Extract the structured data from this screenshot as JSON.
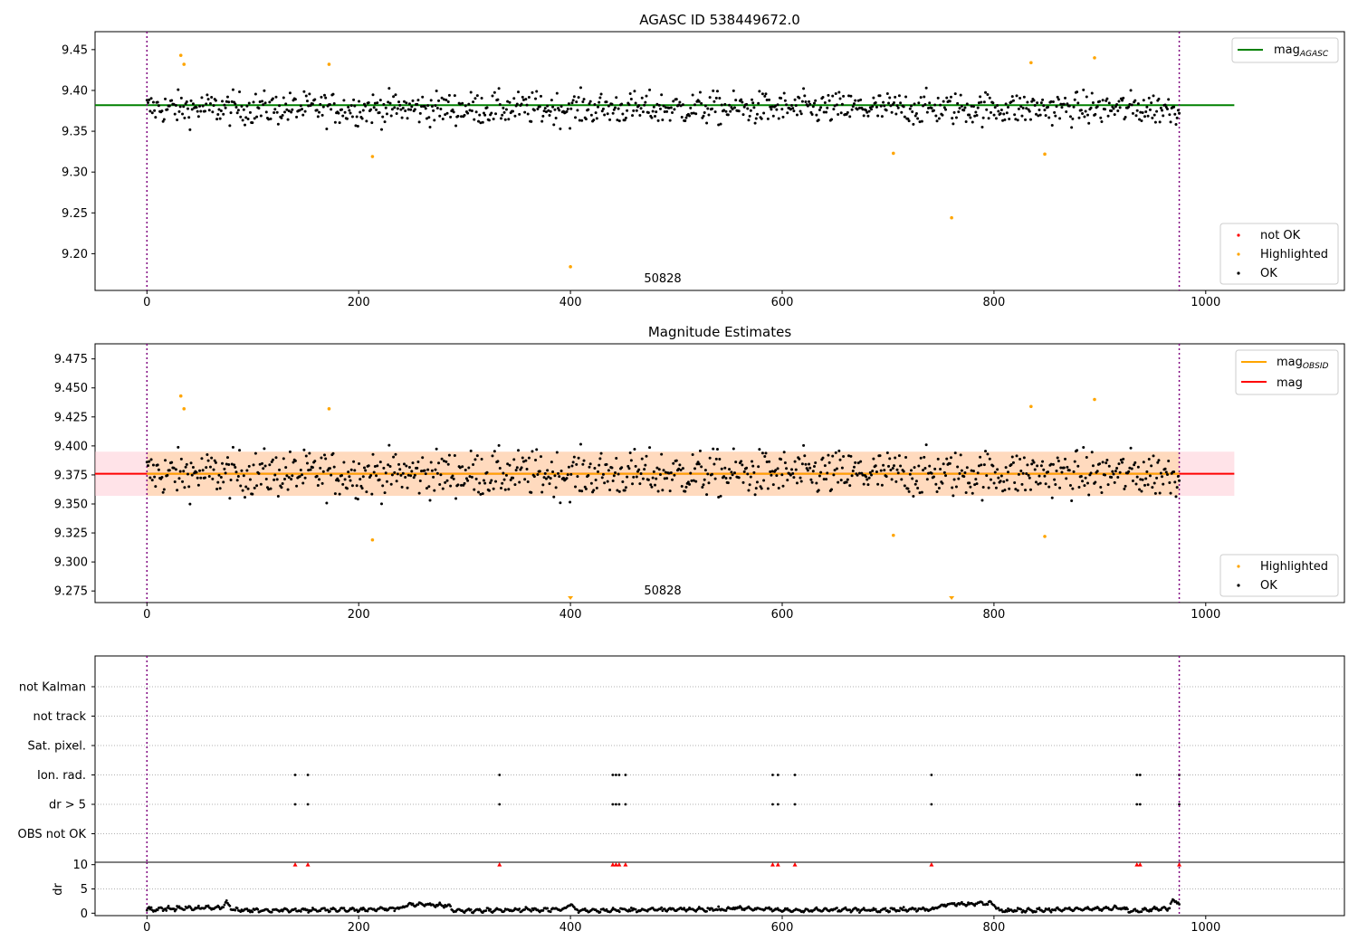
{
  "figure": {
    "panel1_title": "AGASC ID 538449672.0",
    "panel2_title": "Magnitude Estimates",
    "obsid_label": "50828"
  },
  "legends": {
    "agasc_line": {
      "label": "mag",
      "sub": "AGASC",
      "color": "#008000"
    },
    "obsid_line": {
      "label": "mag",
      "sub": "OBSID",
      "color": "#ffa500"
    },
    "mag_line": {
      "label": "mag",
      "color": "#ff0000"
    },
    "not_ok": {
      "label": "not OK",
      "color": "#ff0000"
    },
    "highlighted": {
      "label": "Highlighted",
      "color": "#ffa500"
    },
    "ok": {
      "label": "OK",
      "color": "#000000"
    }
  },
  "chart_data": [
    {
      "type": "scatter",
      "title": "AGASC ID 538449672.0",
      "xlim": [
        -49,
        1131
      ],
      "ylim": [
        9.155,
        9.472
      ],
      "xticks": [
        0,
        200,
        400,
        600,
        800,
        1000
      ],
      "yticks": [
        9.2,
        9.25,
        9.3,
        9.35,
        9.4,
        9.45
      ],
      "hlines": [
        {
          "name": "mag_AGASC",
          "y": 9.382,
          "x": [
            -49,
            1027
          ],
          "color": "#008000"
        }
      ],
      "vlines": [
        0,
        975
      ],
      "annotation": {
        "text": "50828",
        "x": 488
      },
      "series": [
        {
          "name": "not OK",
          "color": "#ff0000",
          "points": []
        },
        {
          "name": "Highlighted",
          "color": "#ffa500",
          "points": [
            [
              32,
              9.443
            ],
            [
              35,
              9.432
            ],
            [
              172,
              9.432
            ],
            [
              213,
              9.319
            ],
            [
              400,
              9.184
            ],
            [
              705,
              9.323
            ],
            [
              760,
              9.244
            ],
            [
              835,
              9.434
            ],
            [
              848,
              9.322
            ],
            [
              895,
              9.44
            ]
          ]
        },
        {
          "name": "OK",
          "color": "#000000",
          "ok_count": 960,
          "center": 9.378,
          "spread": 0.018
        }
      ],
      "legend": "lower-right"
    },
    {
      "type": "scatter",
      "title": "Magnitude Estimates",
      "xlim": [
        -49,
        1131
      ],
      "ylim": [
        9.265,
        9.488
      ],
      "xticks": [
        0,
        200,
        400,
        600,
        800,
        1000
      ],
      "yticks": [
        9.275,
        9.3,
        9.325,
        9.35,
        9.375,
        9.4,
        9.425,
        9.45,
        9.475
      ],
      "hlines": [
        {
          "name": "mag",
          "y": 9.376,
          "x": [
            -49,
            1027
          ],
          "color": "#ff0000"
        },
        {
          "name": "mag_OBSID",
          "y": 9.376,
          "x": [
            0,
            975
          ],
          "color": "#ffa500"
        }
      ],
      "bands": [
        {
          "name": "mag_band",
          "y": [
            9.357,
            9.395
          ],
          "x": [
            -49,
            1027
          ],
          "color": "#ffc0cb"
        },
        {
          "name": "mag_OBSID_band",
          "y": [
            9.357,
            9.395
          ],
          "x": [
            0,
            975
          ],
          "color": "#ffd39b"
        }
      ],
      "vlines": [
        0,
        975
      ],
      "annotation": {
        "text": "50828",
        "x": 488
      },
      "series": [
        {
          "name": "Highlighted",
          "color": "#ffa500",
          "points": [
            [
              32,
              9.443
            ],
            [
              35,
              9.432
            ],
            [
              172,
              9.432
            ],
            [
              213,
              9.319
            ],
            [
              705,
              9.323
            ],
            [
              835,
              9.434
            ],
            [
              848,
              9.322
            ],
            [
              895,
              9.44
            ]
          ],
          "off_scale_markers": [
            400,
            760
          ]
        },
        {
          "name": "OK",
          "color": "#000000",
          "ok_count": 960,
          "center": 9.376,
          "spread": 0.018
        }
      ],
      "legend": "upper-right and lower-right"
    },
    {
      "type": "scatter",
      "title": "",
      "xlim": [
        -49,
        1131
      ],
      "categories": [
        "not Kalman",
        "not track",
        "Sat. pixel.",
        "Ion. rad.",
        "dr > 5",
        "OBS not OK"
      ],
      "flag_points": {
        "Ion. rad.": [
          140,
          152,
          333,
          440,
          443,
          446,
          452,
          591,
          596,
          612,
          741,
          935,
          938,
          975
        ],
        "dr > 5": [
          140,
          152,
          333,
          440,
          443,
          446,
          452,
          591,
          596,
          612,
          741,
          935,
          938,
          975
        ]
      },
      "flag_color": "#000000"
    },
    {
      "type": "scatter",
      "title": "",
      "ylabel": "dr",
      "xlim": [
        -49,
        1131
      ],
      "ylim": [
        -0.5,
        10.5
      ],
      "xticks": [
        0,
        200,
        400,
        600,
        800,
        1000
      ],
      "yticks": [
        0,
        5,
        10
      ],
      "clipped_markers": {
        "y": 10,
        "color": "#ff0000",
        "x": [
          140,
          152,
          333,
          440,
          443,
          446,
          452,
          591,
          596,
          612,
          741,
          935,
          938,
          975
        ]
      },
      "dr_profile": [
        [
          0,
          0.8
        ],
        [
          70,
          1.2
        ],
        [
          75,
          2.2
        ],
        [
          82,
          0.6
        ],
        [
          200,
          0.7
        ],
        [
          240,
          1.0
        ],
        [
          245,
          1.8
        ],
        [
          285,
          1.6
        ],
        [
          290,
          0.5
        ],
        [
          395,
          0.8
        ],
        [
          400,
          2.1
        ],
        [
          405,
          0.6
        ],
        [
          540,
          0.8
        ],
        [
          560,
          1.1
        ],
        [
          600,
          0.6
        ],
        [
          740,
          0.8
        ],
        [
          755,
          1.9
        ],
        [
          800,
          2.0
        ],
        [
          805,
          0.5
        ],
        [
          920,
          1.0
        ],
        [
          930,
          0.4
        ],
        [
          965,
          1.0
        ],
        [
          968,
          2.3
        ],
        [
          975,
          2.3
        ]
      ],
      "color": "#000000"
    }
  ]
}
